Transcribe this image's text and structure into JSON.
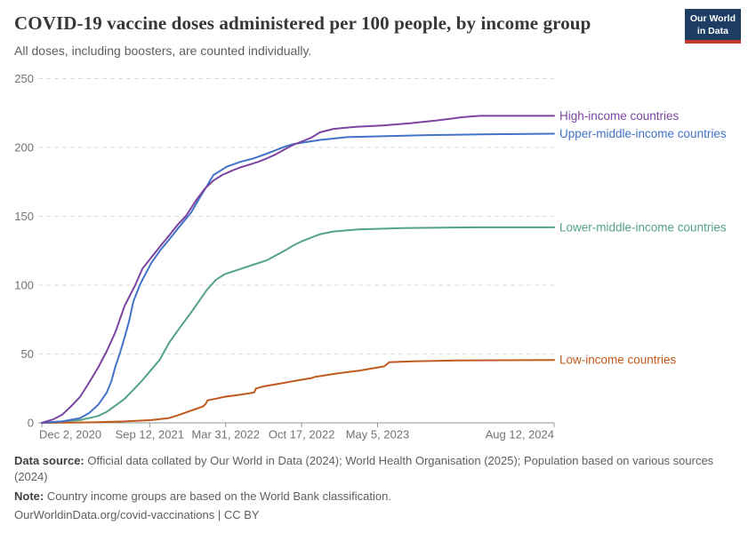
{
  "header": {
    "title": "COVID-19 vaccine doses administered per 100 people, by income group",
    "subtitle": "All doses, including boosters, are counted individually.",
    "logo": {
      "line1": "Our World",
      "line2": "in Data",
      "bg_color": "#1d3d63",
      "bar_color": "#c0392b"
    }
  },
  "footer": {
    "datasource_label": "Data source:",
    "datasource_text": " Official data collated by Our World in Data (2024); World Health Organisation (2025); Population based on various sources (2024)",
    "note_label": "Note:",
    "note_text": " Country income groups are based on the World Bank classification.",
    "citation_url": "OurWorldinData.org/covid-vaccinations",
    "citation_separator": " | ",
    "citation_license": "CC BY"
  },
  "chart_data": {
    "type": "line",
    "title": "COVID-19 vaccine doses administered per 100 people, by income group",
    "subtitle": "All doses, including boosters, are counted individually.",
    "xlabel": "",
    "ylabel": "",
    "x_unit": "days since 2020-12-02",
    "x_start_date": "2020-12-02",
    "x_end_date": "2024-08-12",
    "xlim_days": [
      0,
      1349
    ],
    "ylim": [
      0,
      250
    ],
    "grid": "horizontal dashed",
    "grid_color": "#dadada",
    "axis_color": "#949494",
    "tick_label_color": "#737373",
    "legend_position": "end-of-line labels",
    "y_ticks": [
      0,
      50,
      100,
      150,
      200,
      250
    ],
    "x_ticks": [
      {
        "day": 0,
        "label": "Dec 2, 2020"
      },
      {
        "day": 284,
        "label": "Sep 12, 2021"
      },
      {
        "day": 484,
        "label": "Mar 31, 2022"
      },
      {
        "day": 684,
        "label": "Oct 17, 2022"
      },
      {
        "day": 884,
        "label": "May 5, 2023"
      },
      {
        "day": 1349,
        "label": "Aug 12, 2024"
      }
    ],
    "series": [
      {
        "name": "Lower-middle-income countries",
        "color": "#53a384",
        "points": [
          [
            0,
            0
          ],
          [
            101,
            2
          ],
          [
            148,
            5
          ],
          [
            171,
            8
          ],
          [
            194,
            12.5
          ],
          [
            218,
            17.5
          ],
          [
            241,
            24
          ],
          [
            265,
            31
          ],
          [
            288,
            38.5
          ],
          [
            311,
            46
          ],
          [
            323,
            52
          ],
          [
            335,
            58
          ],
          [
            358,
            67
          ],
          [
            398,
            82
          ],
          [
            436,
            97
          ],
          [
            459,
            104
          ],
          [
            482,
            108
          ],
          [
            515,
            111
          ],
          [
            553,
            114.5
          ],
          [
            592,
            118
          ],
          [
            639,
            125
          ],
          [
            663,
            129
          ],
          [
            686,
            132
          ],
          [
            709,
            134.5
          ],
          [
            733,
            137
          ],
          [
            768,
            139
          ],
          [
            833,
            140.5
          ],
          [
            950,
            141.5
          ],
          [
            1150,
            142
          ],
          [
            1349,
            142
          ]
        ]
      },
      {
        "name": "Low-income countries",
        "color": "#c05a1e",
        "points": [
          [
            0,
            0
          ],
          [
            124,
            0.3
          ],
          [
            218,
            1
          ],
          [
            288,
            2
          ],
          [
            335,
            3.5
          ],
          [
            358,
            5.4
          ],
          [
            390,
            8.6
          ],
          [
            405,
            10
          ],
          [
            425,
            12
          ],
          [
            432,
            14
          ],
          [
            436,
            16.3
          ],
          [
            460,
            17.6
          ],
          [
            482,
            19
          ],
          [
            515,
            20.2
          ],
          [
            546,
            21.5
          ],
          [
            559,
            22
          ],
          [
            564,
            25
          ],
          [
            585,
            26.5
          ],
          [
            616,
            28
          ],
          [
            647,
            29.5
          ],
          [
            678,
            31
          ],
          [
            710,
            32.5
          ],
          [
            721,
            33.5
          ],
          [
            780,
            36
          ],
          [
            838,
            38
          ],
          [
            880,
            40
          ],
          [
            902,
            41
          ],
          [
            915,
            44
          ],
          [
            975,
            44.7
          ],
          [
            1092,
            45.3
          ],
          [
            1349,
            45.7
          ]
        ]
      },
      {
        "name": "Upper-middle-income countries",
        "color": "#4273c8",
        "points": [
          [
            0,
            0
          ],
          [
            54,
            1
          ],
          [
            101,
            3.5
          ],
          [
            124,
            7
          ],
          [
            148,
            13
          ],
          [
            171,
            22
          ],
          [
            183,
            30
          ],
          [
            194,
            41
          ],
          [
            206,
            51
          ],
          [
            218,
            62
          ],
          [
            230,
            74
          ],
          [
            241,
            88
          ],
          [
            258,
            100
          ],
          [
            265,
            104
          ],
          [
            288,
            116
          ],
          [
            311,
            125
          ],
          [
            335,
            133
          ],
          [
            358,
            141
          ],
          [
            382,
            149
          ],
          [
            394,
            153
          ],
          [
            417,
            164
          ],
          [
            452,
            180
          ],
          [
            487,
            186
          ],
          [
            522,
            189.5
          ],
          [
            557,
            192
          ],
          [
            592,
            195.5
          ],
          [
            616,
            198
          ],
          [
            639,
            200.5
          ],
          [
            663,
            202.5
          ],
          [
            686,
            203.5
          ],
          [
            733,
            205.5
          ],
          [
            803,
            207.5
          ],
          [
            873,
            208
          ],
          [
            1014,
            209
          ],
          [
            1154,
            209.5
          ],
          [
            1349,
            210
          ]
        ]
      },
      {
        "name": "High-income countries",
        "color": "#7c44a0",
        "points": [
          [
            0,
            0
          ],
          [
            30,
            2.5
          ],
          [
            54,
            6
          ],
          [
            77,
            12
          ],
          [
            101,
            19
          ],
          [
            124,
            29
          ],
          [
            148,
            40
          ],
          [
            171,
            52
          ],
          [
            194,
            66
          ],
          [
            218,
            85
          ],
          [
            246,
            100
          ],
          [
            265,
            112
          ],
          [
            288,
            120
          ],
          [
            311,
            128
          ],
          [
            335,
            136
          ],
          [
            358,
            144
          ],
          [
            379,
            150
          ],
          [
            405,
            161
          ],
          [
            429,
            170
          ],
          [
            452,
            176
          ],
          [
            475,
            180
          ],
          [
            499,
            183
          ],
          [
            522,
            185.5
          ],
          [
            546,
            187.5
          ],
          [
            569,
            189.5
          ],
          [
            592,
            192
          ],
          [
            616,
            195
          ],
          [
            639,
            198.5
          ],
          [
            663,
            202
          ],
          [
            686,
            204.5
          ],
          [
            709,
            207
          ],
          [
            733,
            211
          ],
          [
            768,
            213.5
          ],
          [
            827,
            215
          ],
          [
            897,
            216
          ],
          [
            967,
            217.5
          ],
          [
            1037,
            219.5
          ],
          [
            1108,
            222
          ],
          [
            1154,
            223
          ],
          [
            1349,
            223
          ]
        ]
      }
    ]
  }
}
